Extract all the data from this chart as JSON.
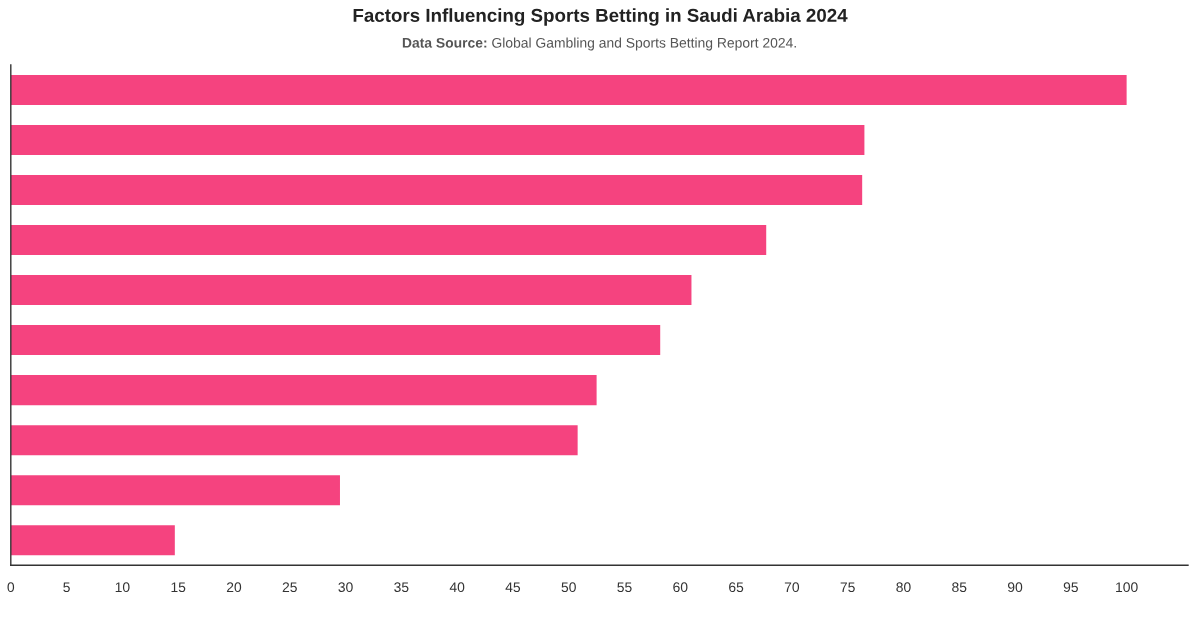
{
  "chart_data": {
    "type": "bar",
    "orientation": "horizontal",
    "title": "Factors Influencing Sports Betting in Saudi Arabia 2024",
    "annotations": [
      "Data Source:",
      "Global Gambling and Sports Betting Report 2024."
    ],
    "categories": [
      null,
      null,
      null,
      null,
      null,
      null,
      null,
      null,
      null,
      null
    ],
    "values": [
      100,
      76.5,
      76.3,
      67.7,
      61,
      58.2,
      52.5,
      50.8,
      29.5,
      14.7
    ],
    "color": "#f5437f",
    "xlim": [
      0,
      105.5
    ],
    "xticks": [
      0,
      5,
      10,
      15,
      20,
      25,
      30,
      35,
      40,
      45,
      50,
      55,
      60,
      65,
      70,
      75,
      80,
      85,
      90,
      95,
      100
    ],
    "grid": false,
    "legend": false
  }
}
